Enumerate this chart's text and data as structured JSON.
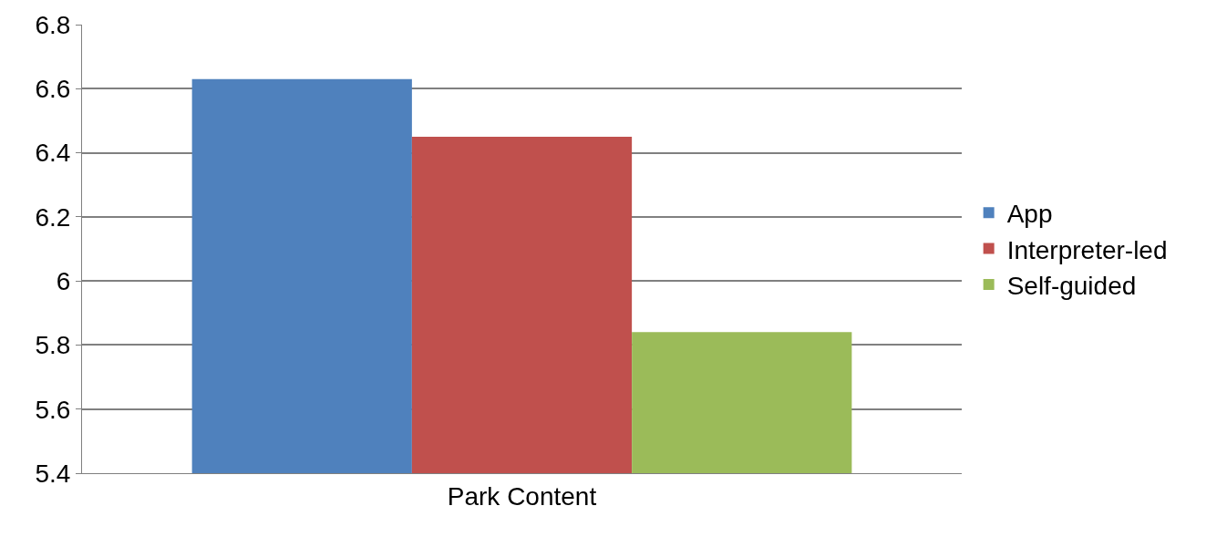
{
  "chart_data": {
    "type": "bar",
    "categories": [
      "Park Content"
    ],
    "series": [
      {
        "name": "App",
        "color": "#4f81bd",
        "values": [
          6.63
        ]
      },
      {
        "name": "Interpreter-led",
        "color": "#c0504d",
        "values": [
          6.45
        ]
      },
      {
        "name": "Self-guided",
        "color": "#9bbb59",
        "values": [
          5.84
        ]
      }
    ],
    "ylim": [
      5.4,
      6.8
    ],
    "yticks": [
      5.4,
      5.6,
      5.8,
      6,
      6.2,
      6.4,
      6.6,
      6.8
    ],
    "grid": "y",
    "legend": "right"
  }
}
